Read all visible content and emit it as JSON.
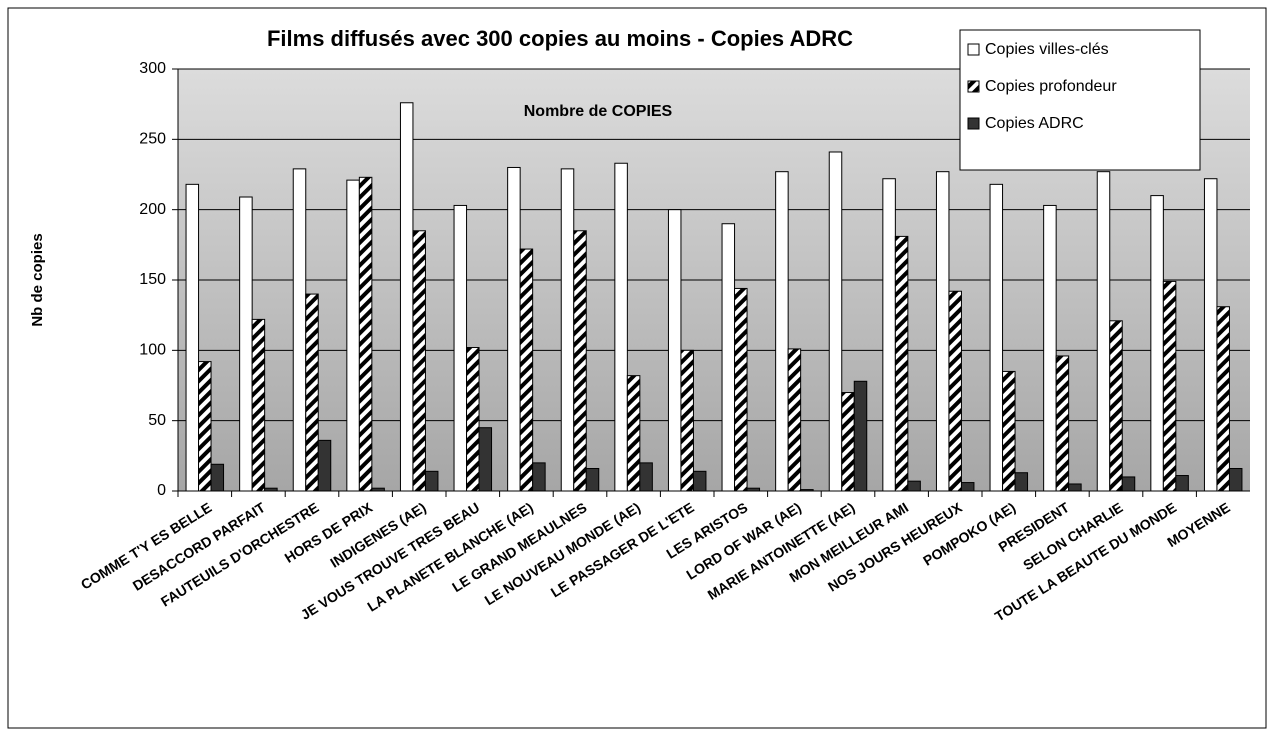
{
  "chart_data": {
    "type": "bar",
    "title": "Films diffusés avec 300 copies au moins  - Copies ADRC",
    "subtitle": "Nombre de COPIES",
    "y_label": "Nb de copies",
    "categories": [
      "COMME T'Y ES BELLE",
      "DESACCORD PARFAIT",
      "FAUTEUILS D'ORCHESTRE",
      "HORS DE PRIX",
      "INDIGENES (AE)",
      "JE VOUS TROUVE TRES BEAU",
      "LA PLANETE BLANCHE (AE)",
      "LE GRAND MEAULNES",
      "LE NOUVEAU MONDE (AE)",
      "LE PASSAGER DE L'ETE",
      "LES ARISTOS",
      "LORD OF WAR (AE)",
      "MARIE ANTOINETTE (AE)",
      "MON MEILLEUR AMI",
      "NOS JOURS HEUREUX",
      "POMPOKO (AE)",
      "PRESIDENT",
      "SELON CHARLIE",
      "TOUTE LA BEAUTE DU MONDE",
      "MOYENNE"
    ],
    "series": [
      {
        "name": "Copies villes-clés",
        "color": "#ffffff",
        "values": [
          218,
          209,
          229,
          221,
          276,
          203,
          230,
          229,
          233,
          200,
          190,
          227,
          241,
          222,
          227,
          218,
          203,
          227,
          210,
          222
        ]
      },
      {
        "name": "Copies profondeur",
        "color": "#ffffff",
        "pattern": "diagonal",
        "values": [
          92,
          122,
          140,
          223,
          185,
          102,
          172,
          185,
          82,
          100,
          144,
          101,
          70,
          181,
          142,
          85,
          96,
          121,
          149,
          131
        ]
      },
      {
        "name": "Copies ADRC",
        "color": "#333333",
        "values": [
          19,
          2,
          36,
          2,
          14,
          45,
          20,
          16,
          20,
          14,
          2,
          1,
          78,
          7,
          6,
          13,
          5,
          10,
          11,
          16
        ]
      }
    ],
    "ylim": [
      0,
      300
    ],
    "yticks": [
      0,
      50,
      100,
      150,
      200,
      250,
      300
    ],
    "grid": true,
    "legend": "top-right"
  }
}
